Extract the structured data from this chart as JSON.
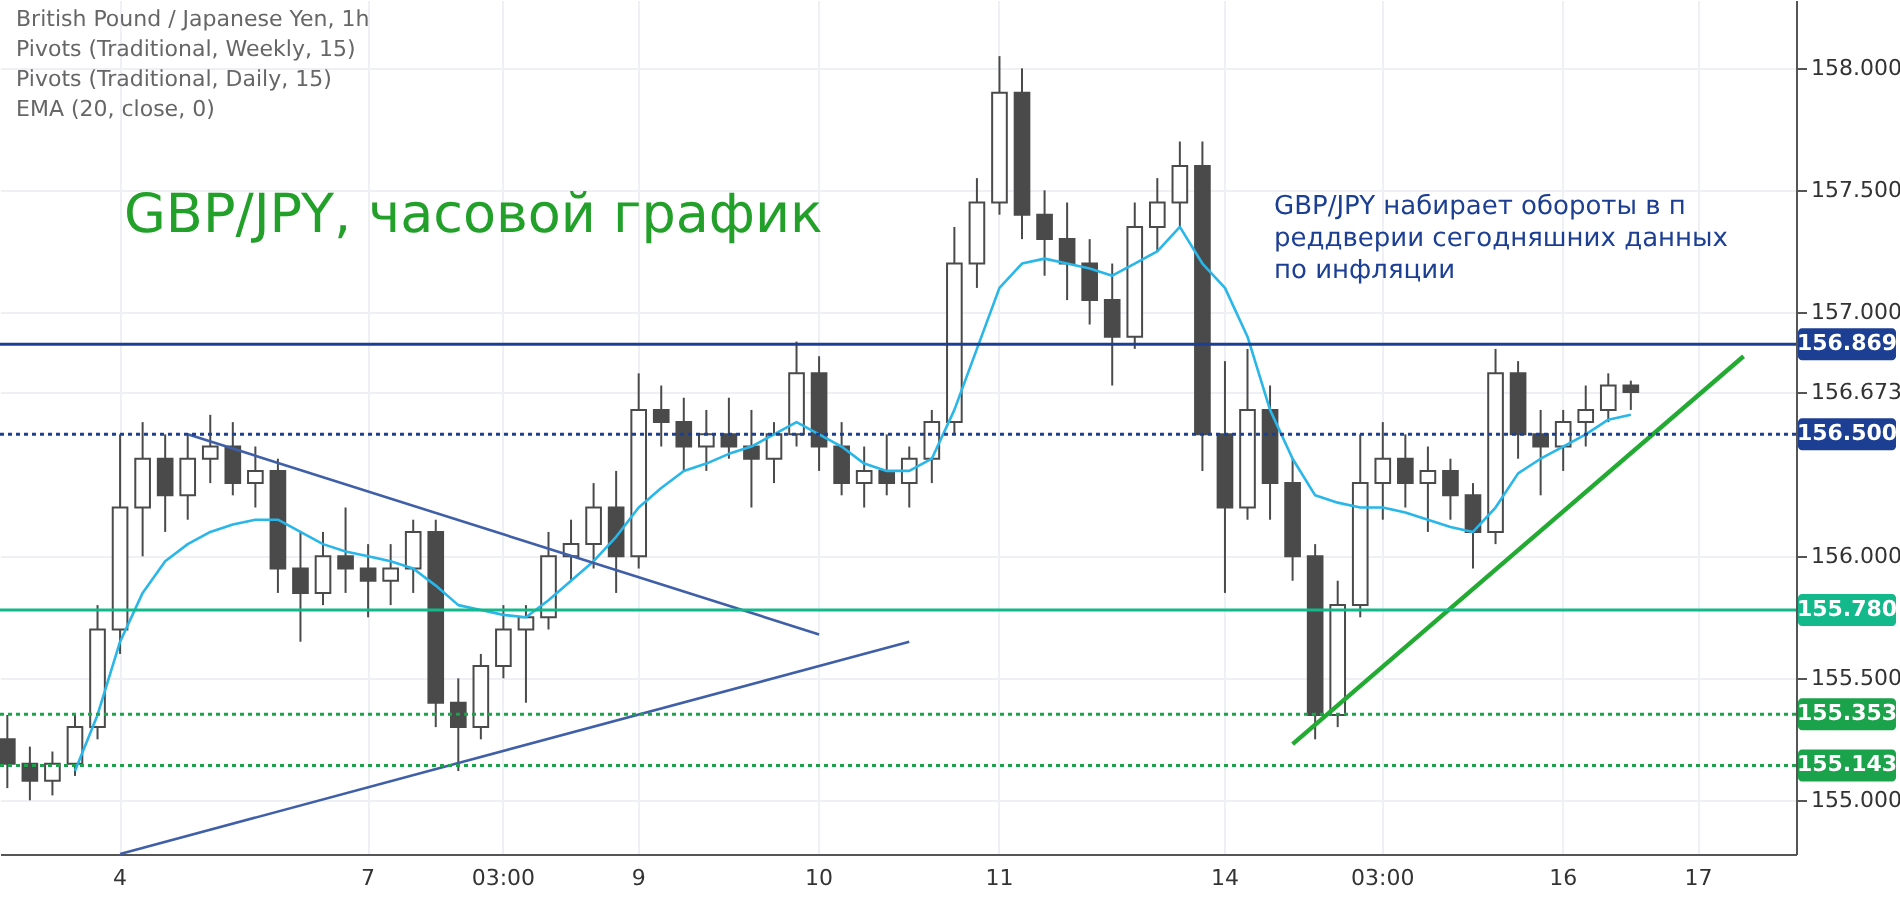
{
  "chart_data": {
    "type": "candlestick",
    "title": "GBP/JPY, часовой график",
    "annotations": [
      "British Pound / Japanese Yen, 1h",
      "Pivots (Traditional, Weekly, 15)",
      "Pivots (Traditional, Daily, 15)",
      "EMA (20, close, 0)",
      "GBP/JPY набирает обороты в п\nреддверии сегодняшних данных\nпо инфляции"
    ],
    "color": "#4a4a4a",
    "categories": [
      null,
      null,
      null,
      null,
      null,
      "4",
      null,
      null,
      null,
      null,
      null,
      null,
      null,
      null,
      null,
      null,
      "7",
      null,
      null,
      null,
      null,
      null,
      "03:00",
      null,
      null,
      null,
      null,
      null,
      "9",
      null,
      null,
      null,
      null,
      null,
      null,
      null,
      "10",
      null,
      null,
      null,
      null,
      null,
      null,
      null,
      "11",
      null,
      null,
      null,
      null,
      null,
      null,
      null,
      null,
      null,
      "14",
      null,
      null,
      null,
      null,
      null,
      null,
      "03:00",
      null,
      null,
      null,
      null,
      null,
      null,
      null,
      "16",
      null,
      null,
      null,
      null,
      null,
      "17",
      null,
      null,
      null,
      null
    ],
    "ohlc": [
      [
        155.25,
        155.35,
        155.05,
        155.15
      ],
      [
        155.15,
        155.22,
        155.0,
        155.08
      ],
      [
        155.08,
        155.2,
        155.02,
        155.15
      ],
      [
        155.15,
        155.35,
        155.1,
        155.3
      ],
      [
        155.3,
        155.8,
        155.25,
        155.7
      ],
      [
        155.7,
        156.5,
        155.6,
        156.2
      ],
      [
        156.2,
        156.55,
        156.0,
        156.4
      ],
      [
        156.4,
        156.5,
        156.1,
        156.25
      ],
      [
        156.25,
        156.5,
        156.15,
        156.4
      ],
      [
        156.4,
        156.58,
        156.3,
        156.45
      ],
      [
        156.45,
        156.55,
        156.25,
        156.3
      ],
      [
        156.3,
        156.45,
        156.2,
        156.35
      ],
      [
        156.35,
        156.4,
        155.85,
        155.95
      ],
      [
        155.95,
        156.1,
        155.65,
        155.85
      ],
      [
        155.85,
        156.1,
        155.8,
        156.0
      ],
      [
        156.0,
        156.2,
        155.85,
        155.95
      ],
      [
        155.95,
        156.05,
        155.75,
        155.9
      ],
      [
        155.9,
        156.05,
        155.8,
        155.95
      ],
      [
        155.95,
        156.15,
        155.85,
        156.1
      ],
      [
        156.1,
        156.15,
        155.3,
        155.4
      ],
      [
        155.4,
        155.5,
        155.12,
        155.3
      ],
      [
        155.3,
        155.6,
        155.25,
        155.55
      ],
      [
        155.55,
        155.8,
        155.5,
        155.7
      ],
      [
        155.7,
        155.8,
        155.4,
        155.75
      ],
      [
        155.75,
        156.1,
        155.7,
        156.0
      ],
      [
        156.0,
        156.15,
        155.9,
        156.05
      ],
      [
        156.05,
        156.3,
        155.95,
        156.2
      ],
      [
        156.2,
        156.35,
        155.85,
        156.0
      ],
      [
        156.0,
        156.75,
        155.95,
        156.6
      ],
      [
        156.6,
        156.7,
        156.45,
        156.55
      ],
      [
        156.55,
        156.65,
        156.35,
        156.45
      ],
      [
        156.45,
        156.6,
        156.35,
        156.5
      ],
      [
        156.5,
        156.65,
        156.4,
        156.45
      ],
      [
        156.45,
        156.6,
        156.2,
        156.4
      ],
      [
        156.4,
        156.55,
        156.3,
        156.5
      ],
      [
        156.5,
        156.88,
        156.45,
        156.75
      ],
      [
        156.75,
        156.82,
        156.35,
        156.45
      ],
      [
        156.45,
        156.55,
        156.25,
        156.3
      ],
      [
        156.3,
        156.45,
        156.2,
        156.35
      ],
      [
        156.35,
        156.5,
        156.25,
        156.3
      ],
      [
        156.3,
        156.45,
        156.2,
        156.4
      ],
      [
        156.4,
        156.6,
        156.3,
        156.55
      ],
      [
        156.55,
        157.35,
        156.5,
        157.2
      ],
      [
        157.2,
        157.55,
        157.1,
        157.45
      ],
      [
        157.45,
        158.05,
        157.4,
        157.9
      ],
      [
        157.9,
        158.0,
        157.3,
        157.4
      ],
      [
        157.4,
        157.5,
        157.15,
        157.3
      ],
      [
        157.3,
        157.45,
        157.05,
        157.2
      ],
      [
        157.2,
        157.3,
        156.95,
        157.05
      ],
      [
        157.05,
        157.2,
        156.7,
        156.9
      ],
      [
        156.9,
        157.45,
        156.85,
        157.35
      ],
      [
        157.35,
        157.55,
        157.25,
        157.45
      ],
      [
        157.45,
        157.7,
        157.35,
        157.6
      ],
      [
        157.6,
        157.7,
        156.35,
        156.5
      ],
      [
        156.5,
        156.8,
        155.85,
        156.2
      ],
      [
        156.2,
        156.85,
        156.15,
        156.6
      ],
      [
        156.6,
        156.7,
        156.15,
        156.3
      ],
      [
        156.3,
        156.4,
        155.9,
        156.0
      ],
      [
        156.0,
        156.05,
        155.25,
        155.35
      ],
      [
        155.35,
        155.9,
        155.3,
        155.8
      ],
      [
        155.8,
        156.5,
        155.75,
        156.3
      ],
      [
        156.3,
        156.55,
        156.15,
        156.4
      ],
      [
        156.4,
        156.5,
        156.2,
        156.3
      ],
      [
        156.3,
        156.45,
        156.1,
        156.35
      ],
      [
        156.35,
        156.4,
        156.15,
        156.25
      ],
      [
        156.25,
        156.3,
        155.95,
        156.1
      ],
      [
        156.1,
        156.85,
        156.05,
        156.75
      ],
      [
        156.75,
        156.8,
        156.4,
        156.5
      ],
      [
        156.5,
        156.6,
        156.25,
        156.45
      ],
      [
        156.45,
        156.6,
        156.35,
        156.55
      ],
      [
        156.55,
        156.7,
        156.45,
        156.6
      ],
      [
        156.6,
        156.75,
        156.55,
        156.7
      ],
      [
        156.7,
        156.72,
        156.6,
        156.673
      ],
      null,
      null,
      null,
      null,
      null,
      null,
      null
    ],
    "series": [
      {
        "type": "line",
        "color": "#29b6e8",
        "values": [
          null,
          null,
          null,
          155.12,
          155.35,
          155.65,
          155.85,
          155.98,
          156.05,
          156.1,
          156.13,
          156.15,
          156.15,
          156.1,
          156.05,
          156.02,
          156.0,
          155.98,
          155.95,
          155.88,
          155.8,
          155.78,
          155.76,
          155.75,
          155.82,
          155.9,
          155.98,
          156.08,
          156.2,
          156.28,
          156.35,
          156.38,
          156.42,
          156.45,
          156.5,
          156.55,
          156.5,
          156.45,
          156.38,
          156.35,
          156.35,
          156.4,
          156.6,
          156.85,
          157.1,
          157.2,
          157.22,
          157.2,
          157.18,
          157.15,
          157.2,
          157.25,
          157.35,
          157.2,
          157.1,
          156.9,
          156.6,
          156.4,
          156.25,
          156.22,
          156.2,
          156.2,
          156.18,
          156.15,
          156.12,
          156.1,
          156.2,
          156.34,
          156.4,
          156.45,
          156.5,
          156.56,
          156.58,
          null,
          null,
          null,
          null,
          null,
          null,
          null
        ]
      },
      {
        "type": "line",
        "color": "#3f5fa8",
        "values": [
          null,
          null,
          null,
          null,
          null,
          null,
          null,
          null,
          156.5,
          null,
          null,
          null,
          null,
          null,
          null,
          null,
          null,
          null,
          null,
          null,
          null,
          null,
          null,
          null,
          null,
          null,
          null,
          null,
          null,
          null,
          null,
          null,
          null,
          null,
          null,
          null,
          155.68,
          null,
          null,
          null,
          null,
          null,
          null,
          null,
          null,
          null,
          null,
          null,
          null,
          null,
          null,
          null,
          null,
          null,
          null,
          null,
          null,
          null,
          null,
          null,
          null,
          null,
          null,
          null,
          null,
          null,
          null,
          null,
          null,
          null,
          null,
          null,
          null,
          null,
          null,
          null,
          null,
          null,
          null,
          null
        ]
      },
      {
        "type": "line",
        "color": "#3f5fa8",
        "values": [
          null,
          null,
          null,
          null,
          null,
          154.78,
          null,
          null,
          null,
          null,
          null,
          null,
          null,
          null,
          null,
          null,
          null,
          null,
          null,
          null,
          null,
          null,
          null,
          null,
          null,
          null,
          null,
          null,
          null,
          null,
          null,
          null,
          null,
          null,
          null,
          null,
          null,
          null,
          null,
          null,
          155.65,
          null,
          null,
          null,
          null,
          null,
          null,
          null,
          null,
          null,
          null,
          null,
          null,
          null,
          null,
          null,
          null,
          null,
          null,
          null,
          null,
          null,
          null,
          null,
          null,
          null,
          null,
          null,
          null,
          null,
          null,
          null,
          null,
          null,
          null,
          null,
          null,
          null,
          null,
          null
        ]
      },
      {
        "type": "line",
        "color": "#22aa33",
        "values": [
          null,
          null,
          null,
          null,
          null,
          null,
          null,
          null,
          null,
          null,
          null,
          null,
          null,
          null,
          null,
          null,
          null,
          null,
          null,
          null,
          null,
          null,
          null,
          null,
          null,
          null,
          null,
          null,
          null,
          null,
          null,
          null,
          null,
          null,
          null,
          null,
          null,
          null,
          null,
          null,
          null,
          null,
          null,
          null,
          null,
          null,
          null,
          null,
          null,
          null,
          null,
          null,
          null,
          null,
          null,
          null,
          null,
          155.23,
          null,
          null,
          null,
          null,
          null,
          null,
          null,
          null,
          null,
          null,
          null,
          null,
          null,
          null,
          null,
          null,
          null,
          null,
          null,
          156.82,
          null,
          null
        ]
      }
    ],
    "ref_lines": [
      {
        "axis": "y",
        "value": 156.869,
        "label": "156.869",
        "color": "#1c3f94",
        "line_style": "solid"
      },
      {
        "axis": "y",
        "value": 156.5,
        "label": "156.500",
        "color": "#1c3f94",
        "line_style": "dotted"
      },
      {
        "axis": "y",
        "value": 155.78,
        "label": "155.780",
        "color": "#13b98a",
        "line_style": "solid"
      },
      {
        "axis": "y",
        "value": 155.353,
        "label": "155.353",
        "color": "#1aa34a",
        "line_style": "dotted"
      },
      {
        "axis": "y",
        "value": 155.143,
        "label": "155.143",
        "color": "#1aa34a",
        "line_style": "dotted"
      }
    ],
    "ylim": [
      154.78,
      158.28
    ],
    "yticks": [
      {
        "value": 155,
        "label": "155.000"
      },
      {
        "value": 155.5,
        "label": "155.500"
      },
      {
        "value": 156,
        "label": "156.000"
      },
      {
        "value": 156.673,
        "label": "156.673"
      },
      {
        "value": 157,
        "label": "157.000"
      },
      {
        "value": 157.5,
        "label": "157.500"
      },
      {
        "value": 158,
        "label": "158.000"
      }
    ],
    "grid": true
  }
}
